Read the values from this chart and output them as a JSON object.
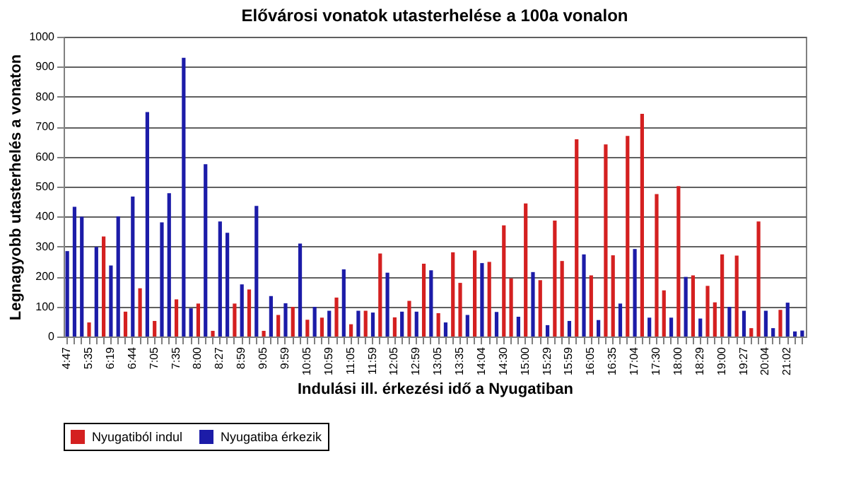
{
  "chart_data": {
    "type": "bar",
    "title": "Elővárosi vonatok utasterhelése a 100a vonalon",
    "xlabel": "Indulási ill. érkezési idő a Nyugatiban",
    "ylabel": "Legnagyobb utasterhelés a vonaton",
    "categories": [
      "4:47",
      null,
      null,
      "5:35",
      null,
      null,
      "6:19",
      null,
      null,
      "6:44",
      null,
      null,
      "7:05",
      null,
      null,
      "7:35",
      null,
      null,
      "8:00",
      null,
      null,
      "8:27",
      null,
      null,
      "8:59",
      null,
      null,
      "9:05",
      null,
      null,
      "9:59",
      null,
      null,
      "10:05",
      null,
      null,
      "10:59",
      null,
      null,
      "11:05",
      null,
      null,
      "11:59",
      null,
      null,
      "12:05",
      null,
      null,
      "12:59",
      null,
      null,
      "13:05",
      null,
      null,
      "13:35",
      null,
      null,
      "14:04",
      null,
      null,
      "14:30",
      null,
      null,
      "15:00",
      null,
      null,
      "15:29",
      null,
      null,
      "15:59",
      null,
      null,
      "16:05",
      null,
      null,
      "16:35",
      null,
      null,
      "17:04",
      null,
      null,
      "17:30",
      null,
      null,
      "18:00",
      null,
      null,
      "18:29",
      null,
      null,
      "19:00",
      null,
      null,
      "19:27",
      null,
      null,
      "20:04",
      null,
      null,
      "21:02",
      null,
      null
    ],
    "series": [
      {
        "name": "Nyugatiból indul",
        "color": "#d42020",
        "values": [
          null,
          null,
          null,
          47,
          null,
          334,
          null,
          null,
          83,
          null,
          161,
          null,
          52,
          null,
          null,
          124,
          null,
          null,
          110,
          null,
          19,
          null,
          null,
          110,
          null,
          157,
          null,
          19,
          null,
          72,
          null,
          99,
          null,
          56,
          null,
          63,
          null,
          130,
          null,
          41,
          null,
          86,
          null,
          277,
          null,
          64,
          null,
          119,
          null,
          243,
          null,
          78,
          null,
          281,
          179,
          null,
          287,
          null,
          249,
          null,
          371,
          194,
          null,
          444,
          null,
          188,
          null,
          387,
          252,
          null,
          658,
          null,
          204,
          null,
          641,
          271,
          null,
          669,
          null,
          743,
          null,
          475,
          154,
          null,
          502,
          null,
          204,
          null,
          169,
          114,
          274,
          null,
          270,
          null,
          28,
          384,
          null,
          null,
          89,
          null,
          null,
          null
        ]
      },
      {
        "name": "Nyugatiba érkezik",
        "color": "#1c1ca8",
        "values": [
          285,
          433,
          400,
          null,
          299,
          null,
          237,
          401,
          null,
          467,
          null,
          749,
          null,
          381,
          478,
          null,
          930,
          94,
          null,
          575,
          null,
          384,
          346,
          null,
          174,
          null,
          436,
          null,
          135,
          null,
          111,
          null,
          310,
          null,
          99,
          null,
          86,
          null,
          224,
          null,
          86,
          null,
          80,
          null,
          213,
          null,
          83,
          null,
          83,
          null,
          221,
          null,
          47,
          null,
          null,
          72,
          null,
          245,
          null,
          82,
          null,
          null,
          66,
          null,
          215,
          null,
          38,
          null,
          null,
          52,
          null,
          274,
          null,
          55,
          null,
          null,
          110,
          null,
          292,
          null,
          63,
          null,
          null,
          63,
          null,
          199,
          null,
          60,
          null,
          null,
          null,
          99,
          null,
          86,
          null,
          null,
          86,
          28,
          null,
          113,
          17,
          20
        ]
      }
    ],
    "ylim": [
      0,
      1000
    ],
    "yticks": [
      0,
      100,
      200,
      300,
      400,
      500,
      600,
      700,
      800,
      900,
      1000
    ],
    "grid": "y",
    "legend": "bottom"
  }
}
